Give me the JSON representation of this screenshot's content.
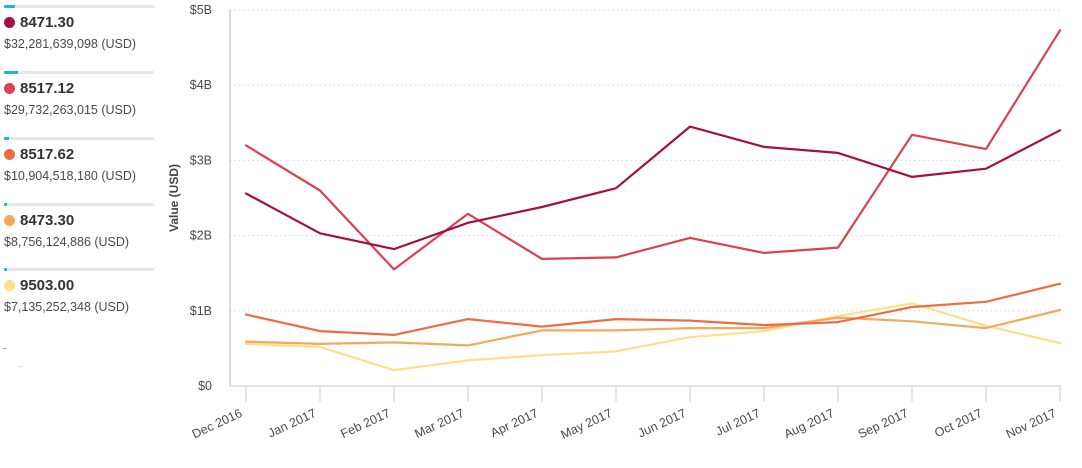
{
  "legend": {
    "items": [
      {
        "code": "8471.30",
        "value": "$32,281,639,098 (USD)",
        "color": "#a30f46",
        "share": 0.07
      },
      {
        "code": "8517.12",
        "value": "$29,732,263,015 (USD)",
        "color": "#d9424f",
        "share": 0.09
      },
      {
        "code": "8517.62",
        "value": "$10,904,518,180 (USD)",
        "color": "#ec6d42",
        "share": 0.03
      },
      {
        "code": "8473.30",
        "value": "$8,756,124,886 (USD)",
        "color": "#f5a85c",
        "share": 0.02
      },
      {
        "code": "9503.00",
        "value": "$7,135,252,348 (USD)",
        "color": "#fde08c",
        "share": 0.02
      }
    ]
  },
  "chart_data": {
    "type": "line",
    "title": "",
    "xlabel": "",
    "ylabel": "Value (USD)",
    "ylim": [
      0,
      5
    ],
    "ytick_labels": [
      "$0",
      "$1B",
      "$2B",
      "$3B",
      "$4B",
      "$5B"
    ],
    "categories": [
      "Dec 2016",
      "Jan 2017",
      "Feb 2017",
      "Mar 2017",
      "Apr 2017",
      "May 2017",
      "Jun 2017",
      "Jul 2017",
      "Aug 2017",
      "Sep 2017",
      "Oct 2017",
      "Nov 2017"
    ],
    "series": [
      {
        "name": "8471.30",
        "color": "#a30f46",
        "values": [
          2.56,
          2.03,
          1.82,
          2.17,
          2.38,
          2.63,
          3.45,
          3.18,
          3.1,
          2.78,
          2.89,
          3.4
        ]
      },
      {
        "name": "8517.12",
        "color": "#d9424f",
        "values": [
          3.2,
          2.6,
          1.55,
          2.29,
          1.69,
          1.71,
          1.97,
          1.77,
          1.84,
          3.34,
          3.15,
          4.73
        ]
      },
      {
        "name": "8517.62",
        "color": "#ec6d42",
        "values": [
          0.95,
          0.73,
          0.68,
          0.89,
          0.79,
          0.89,
          0.87,
          0.81,
          0.85,
          1.05,
          1.12,
          1.36
        ]
      },
      {
        "name": "8473.30",
        "color": "#f5a85c",
        "values": [
          0.59,
          0.56,
          0.58,
          0.54,
          0.74,
          0.74,
          0.77,
          0.77,
          0.91,
          0.86,
          0.77,
          1.01
        ]
      },
      {
        "name": "9503.00",
        "color": "#fde08c",
        "values": [
          0.56,
          0.52,
          0.21,
          0.34,
          0.41,
          0.46,
          0.65,
          0.73,
          0.93,
          1.1,
          0.8,
          0.57
        ]
      }
    ],
    "grid": true,
    "legend_position": "left"
  }
}
